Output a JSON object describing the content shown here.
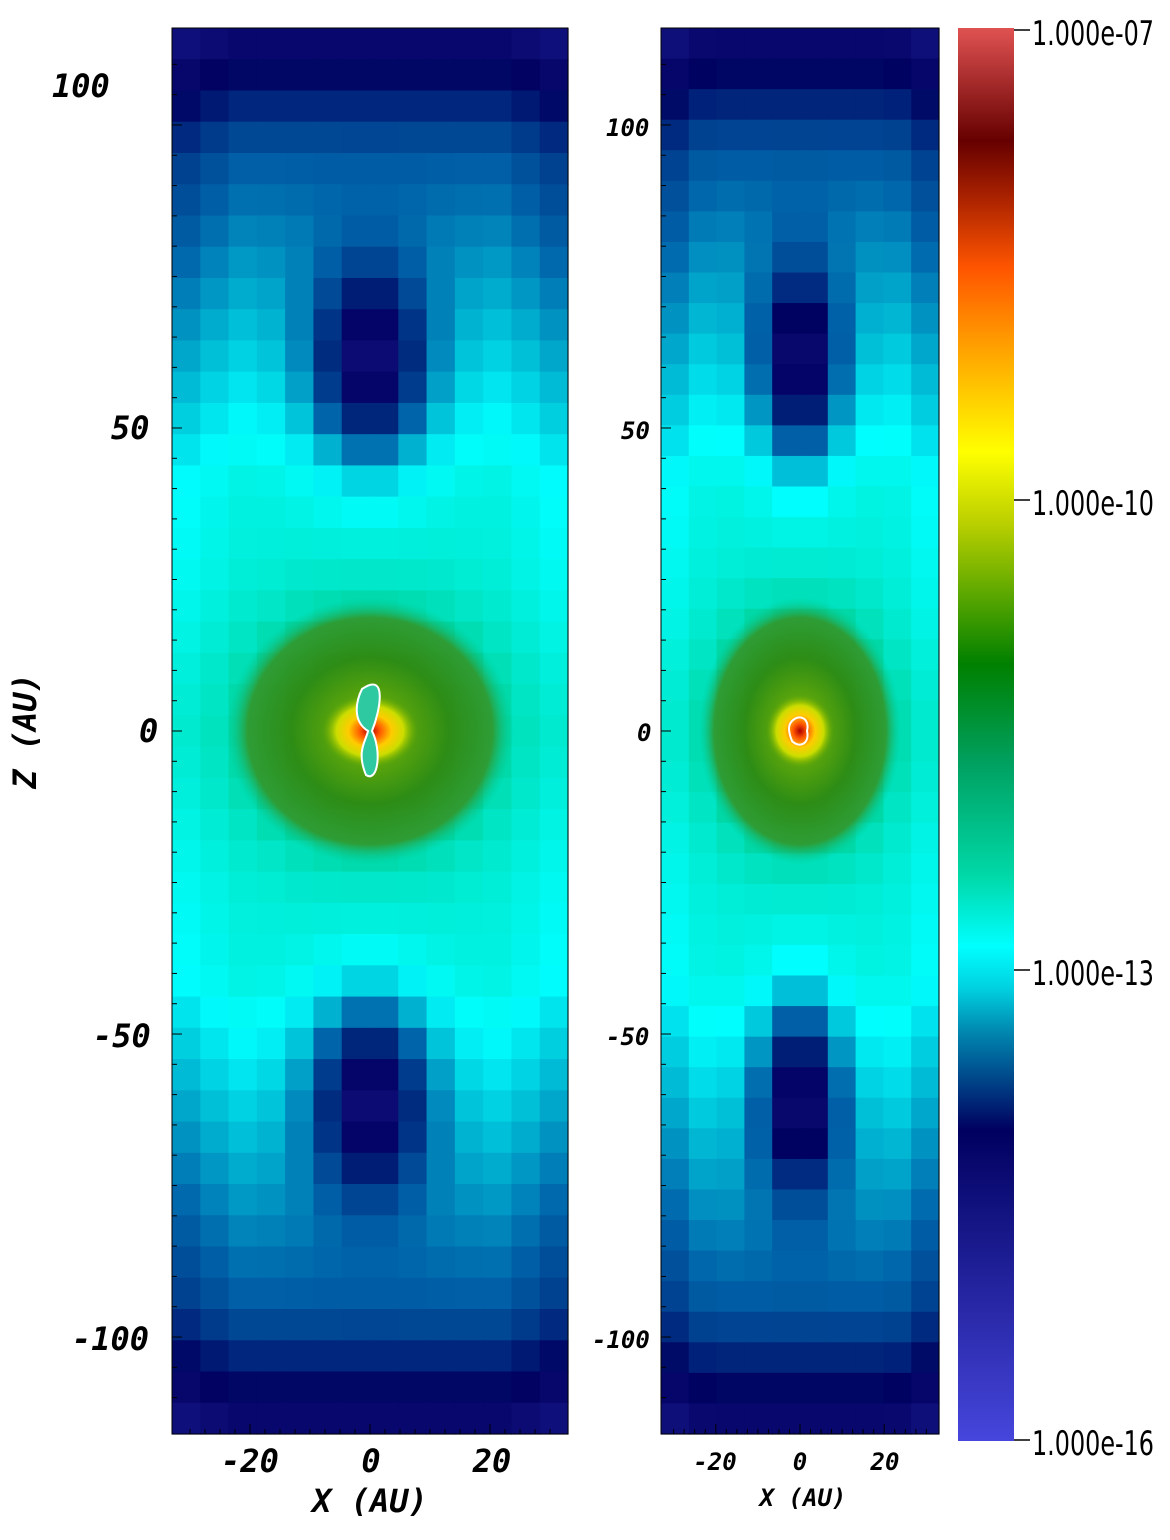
{
  "chart_data": [
    {
      "type": "heatmap",
      "panel": "left",
      "xlabel": "X (AU)",
      "ylabel": "Z (AU)",
      "xlim": [
        -33,
        33
      ],
      "ylim": [
        -116,
        116
      ],
      "x_ticks": [
        -20,
        0,
        20
      ],
      "x_tick_labels": [
        "-20",
        "0",
        "20"
      ],
      "y_ticks": [
        100,
        50,
        0,
        -50,
        -100
      ],
      "y_tick_labels": [
        "100",
        "50",
        "0",
        "-50",
        "-100"
      ],
      "features": {
        "low_density_lobes_z": [
          58,
          -58
        ],
        "core_peak_density": 1e-08,
        "contour_color": "#ffffff"
      }
    },
    {
      "type": "heatmap",
      "panel": "right",
      "xlabel": "X (AU)",
      "xlim": [
        -33,
        33
      ],
      "ylim": [
        -116,
        116
      ],
      "x_ticks": [
        -20,
        0,
        20
      ],
      "x_tick_labels": [
        "-20",
        "0",
        "20"
      ],
      "y_ticks": [
        100,
        50,
        0,
        -50,
        -100
      ],
      "y_tick_labels": [
        "100",
        "50",
        "0",
        "-50",
        "-100"
      ],
      "features": {
        "low_density_lobes_z": [
          58,
          -58
        ],
        "core_peak_density": 1e-08,
        "contour_color": "#ffffff"
      }
    }
  ],
  "colorbar": {
    "scale": "log",
    "min": 1e-16,
    "max": 1e-07,
    "tick_values": [
      1e-07,
      1e-10,
      1e-13,
      1e-16
    ],
    "tick_labels": [
      "1.000e-07",
      "1.000e-10",
      "1.000e-13",
      "1.000e-16"
    ],
    "colors": [
      "#4444dd",
      "#0a0a5a",
      "#00aacc",
      "#00ffff",
      "#00cc99",
      "#008000",
      "#ccdd00",
      "#ffff00",
      "#ff9900",
      "#ff5500",
      "#660000",
      "#dd5555"
    ]
  }
}
